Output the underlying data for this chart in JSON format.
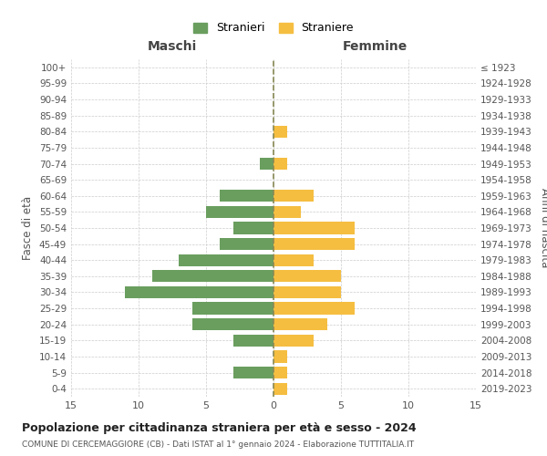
{
  "age_groups": [
    "100+",
    "95-99",
    "90-94",
    "85-89",
    "80-84",
    "75-79",
    "70-74",
    "65-69",
    "60-64",
    "55-59",
    "50-54",
    "45-49",
    "40-44",
    "35-39",
    "30-34",
    "25-29",
    "20-24",
    "15-19",
    "10-14",
    "5-9",
    "0-4"
  ],
  "birth_years": [
    "≤ 1923",
    "1924-1928",
    "1929-1933",
    "1934-1938",
    "1939-1943",
    "1944-1948",
    "1949-1953",
    "1954-1958",
    "1959-1963",
    "1964-1968",
    "1969-1973",
    "1974-1978",
    "1979-1983",
    "1984-1988",
    "1989-1993",
    "1994-1998",
    "1999-2003",
    "2004-2008",
    "2009-2013",
    "2014-2018",
    "2019-2023"
  ],
  "males": [
    0,
    0,
    0,
    0,
    0,
    0,
    1,
    0,
    4,
    5,
    3,
    4,
    7,
    9,
    11,
    6,
    6,
    3,
    0,
    3,
    0
  ],
  "females": [
    0,
    0,
    0,
    0,
    1,
    0,
    1,
    0,
    3,
    2,
    6,
    6,
    3,
    5,
    5,
    6,
    4,
    3,
    1,
    1,
    1
  ],
  "male_color": "#6a9e5f",
  "female_color": "#f5be41",
  "male_label": "Stranieri",
  "female_label": "Straniere",
  "title": "Popolazione per cittadinanza straniera per età e sesso - 2024",
  "subtitle": "COMUNE DI CERCEMAGGIORE (CB) - Dati ISTAT al 1° gennaio 2024 - Elaborazione TUTTITALIA.IT",
  "xlabel_left": "Maschi",
  "xlabel_right": "Femmine",
  "ylabel_left": "Fasce di età",
  "ylabel_right": "Anni di nascita",
  "xlim": 15,
  "background_color": "#ffffff",
  "grid_color": "#cccccc"
}
